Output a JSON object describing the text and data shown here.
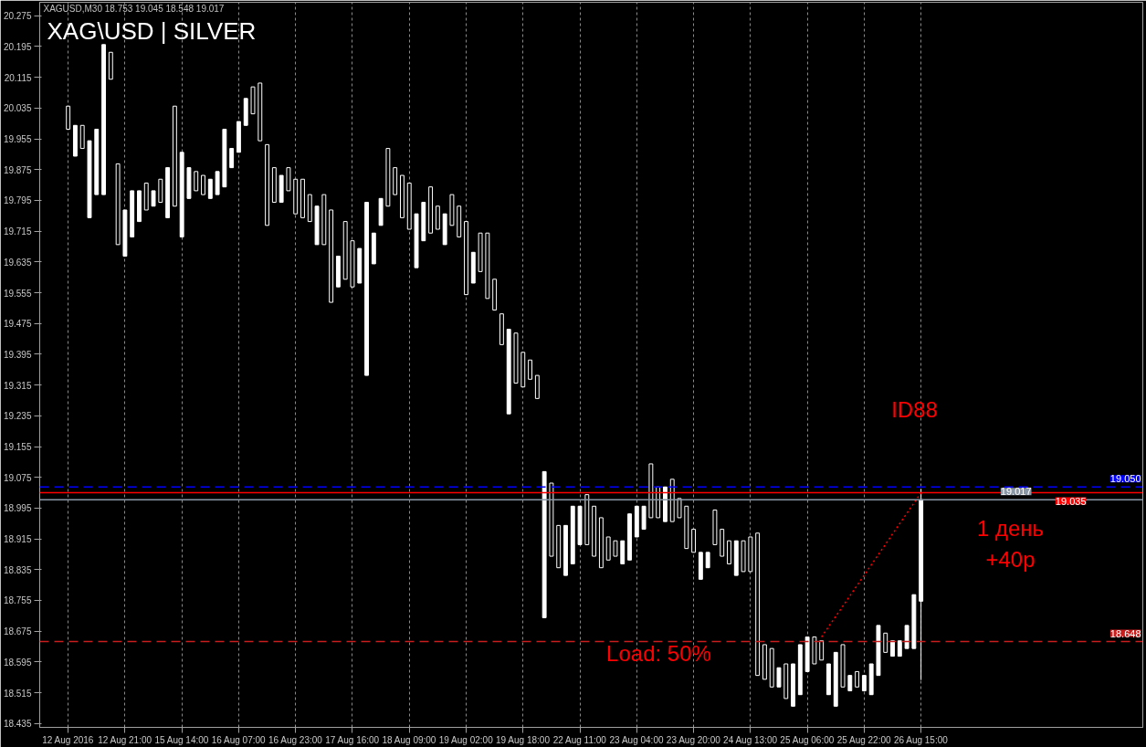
{
  "chart_data": {
    "type": "candlestick",
    "title": "XAG\\USD | SILVER",
    "subtitle": "XAGUSD,M30 18.753 19.045 18.548 19.017",
    "annotations": [
      "ID88",
      "1 день\n+40р",
      "Load: 50%"
    ],
    "categories": [
      "12 Aug 2016",
      null,
      null,
      null,
      null,
      null,
      null,
      null,
      "12 Aug 21:00",
      null,
      null,
      null,
      null,
      null,
      null,
      null,
      "15 Aug 14:00",
      null,
      null,
      null,
      null,
      null,
      null,
      null,
      "16 Aug 07:00",
      null,
      null,
      null,
      null,
      null,
      null,
      null,
      "16 Aug 23:00",
      null,
      null,
      null,
      null,
      null,
      null,
      null,
      "17 Aug 16:00",
      null,
      null,
      null,
      null,
      null,
      null,
      null,
      "18 Aug 09:00",
      null,
      null,
      null,
      null,
      null,
      null,
      null,
      "19 Aug 02:00",
      null,
      null,
      null,
      null,
      null,
      null,
      null,
      "19 Aug 18:00",
      null,
      null,
      null,
      null,
      null,
      null,
      null,
      "22 Aug 11:00",
      null,
      null,
      null,
      null,
      null,
      null,
      null,
      "23 Aug 04:00",
      null,
      null,
      null,
      null,
      null,
      null,
      null,
      "23 Aug 20:00",
      null,
      null,
      null,
      null,
      null,
      null,
      null,
      "24 Aug 13:00",
      null,
      null,
      null,
      null,
      null,
      null,
      null,
      "25 Aug 06:00",
      null,
      null,
      null,
      null,
      null,
      null,
      null,
      "25 Aug 22:00",
      null,
      null,
      null,
      null,
      null,
      null,
      null,
      "26 Aug 15:00"
    ],
    "ohlc": [
      [
        20.04,
        20.04,
        19.98,
        19.98
      ],
      [
        19.91,
        19.99,
        19.91,
        19.99
      ],
      [
        19.99,
        19.99,
        19.93,
        19.93
      ],
      [
        19.75,
        19.95,
        19.75,
        19.95
      ],
      [
        19.81,
        19.98,
        19.81,
        19.98
      ],
      [
        19.81,
        20.2,
        19.81,
        20.2
      ],
      [
        20.18,
        20.18,
        20.11,
        20.11
      ],
      [
        19.89,
        19.89,
        19.68,
        19.68
      ],
      [
        19.65,
        19.77,
        19.65,
        19.77
      ],
      [
        19.7,
        19.82,
        19.7,
        19.82
      ],
      [
        19.74,
        19.82,
        19.74,
        19.82
      ],
      [
        19.84,
        19.84,
        19.77,
        19.77
      ],
      [
        19.78,
        19.82,
        19.78,
        19.82
      ],
      [
        19.85,
        19.85,
        19.79,
        19.79
      ],
      [
        19.75,
        19.88,
        19.75,
        19.88
      ],
      [
        20.04,
        20.04,
        19.78,
        19.78
      ],
      [
        19.7,
        19.92,
        19.7,
        19.92
      ],
      [
        19.8,
        19.88,
        19.8,
        19.88
      ],
      [
        19.87,
        19.87,
        19.82,
        19.82
      ],
      [
        19.86,
        19.86,
        19.81,
        19.81
      ],
      [
        19.8,
        19.85,
        19.8,
        19.85
      ],
      [
        19.81,
        19.87,
        19.81,
        19.87
      ],
      [
        19.83,
        19.98,
        19.83,
        19.98
      ],
      [
        19.88,
        19.93,
        19.88,
        19.93
      ],
      [
        19.92,
        20.0,
        19.92,
        20.0
      ],
      [
        19.99,
        20.06,
        19.99,
        20.06
      ],
      [
        20.09,
        20.09,
        20.02,
        20.02
      ],
      [
        20.1,
        20.1,
        19.95,
        19.95
      ],
      [
        19.94,
        19.94,
        19.73,
        19.73
      ],
      [
        19.88,
        19.88,
        19.79,
        19.79
      ],
      [
        19.79,
        19.86,
        19.79,
        19.86
      ],
      [
        19.88,
        19.88,
        19.82,
        19.82
      ],
      [
        19.85,
        19.85,
        19.76,
        19.76
      ],
      [
        19.85,
        19.85,
        19.75,
        19.75
      ],
      [
        19.81,
        19.81,
        19.74,
        19.74
      ],
      [
        19.68,
        19.78,
        19.68,
        19.78
      ],
      [
        19.81,
        19.81,
        19.68,
        19.68
      ],
      [
        19.77,
        19.77,
        19.53,
        19.53
      ],
      [
        19.57,
        19.65,
        19.57,
        19.65
      ],
      [
        19.74,
        19.74,
        19.59,
        19.59
      ],
      [
        19.69,
        19.69,
        19.57,
        19.57
      ],
      [
        19.58,
        19.67,
        19.58,
        19.67
      ],
      [
        19.34,
        19.79,
        19.34,
        19.79
      ],
      [
        19.63,
        19.71,
        19.63,
        19.71
      ],
      [
        19.73,
        19.8,
        19.73,
        19.8
      ],
      [
        19.93,
        19.93,
        19.78,
        19.78
      ],
      [
        19.88,
        19.88,
        19.81,
        19.81
      ],
      [
        19.86,
        19.86,
        19.75,
        19.75
      ],
      [
        19.84,
        19.84,
        19.72,
        19.72
      ],
      [
        19.62,
        19.76,
        19.62,
        19.76
      ],
      [
        19.69,
        19.79,
        19.69,
        19.79
      ],
      [
        19.83,
        19.83,
        19.71,
        19.71
      ],
      [
        19.78,
        19.78,
        19.72,
        19.72
      ],
      [
        19.68,
        19.76,
        19.68,
        19.76
      ],
      [
        19.81,
        19.81,
        19.73,
        19.73
      ],
      [
        19.78,
        19.78,
        19.7,
        19.7
      ],
      [
        19.74,
        19.74,
        19.55,
        19.55
      ],
      [
        19.58,
        19.66,
        19.58,
        19.66
      ],
      [
        19.71,
        19.71,
        19.61,
        19.61
      ],
      [
        19.71,
        19.71,
        19.54,
        19.54
      ],
      [
        19.59,
        19.59,
        19.51,
        19.51
      ],
      [
        19.5,
        19.5,
        19.42,
        19.42
      ],
      [
        19.24,
        19.46,
        19.24,
        19.46
      ],
      [
        19.45,
        19.45,
        19.32,
        19.32
      ],
      [
        19.4,
        19.4,
        19.31,
        19.31
      ],
      [
        19.38,
        19.38,
        19.33,
        19.33
      ],
      [
        19.34,
        19.34,
        19.28,
        19.28
      ],
      [
        18.71,
        19.09,
        18.71,
        19.09
      ],
      [
        19.06,
        19.06,
        18.87,
        18.87
      ],
      [
        18.95,
        18.95,
        18.84,
        18.84
      ],
      [
        18.82,
        18.95,
        18.82,
        18.95
      ],
      [
        18.85,
        19.0,
        18.85,
        19.0
      ],
      [
        18.9,
        19.0,
        18.9,
        19.0
      ],
      [
        19.03,
        19.03,
        18.9,
        18.9
      ],
      [
        19.0,
        19.0,
        18.87,
        18.87
      ],
      [
        18.97,
        18.97,
        18.84,
        18.84
      ],
      [
        18.92,
        18.92,
        18.86,
        18.86
      ],
      [
        18.91,
        18.91,
        18.87,
        18.87
      ],
      [
        18.85,
        18.91,
        18.85,
        18.91
      ],
      [
        18.86,
        18.98,
        18.86,
        18.98
      ],
      [
        18.92,
        19.0,
        18.92,
        19.0
      ],
      [
        18.94,
        19.0,
        18.94,
        19.0
      ],
      [
        19.11,
        19.11,
        18.97,
        18.97
      ],
      [
        19.05,
        19.05,
        18.97,
        18.97
      ],
      [
        18.96,
        19.05,
        18.96,
        19.05
      ],
      [
        19.07,
        19.07,
        18.96,
        18.96
      ],
      [
        19.02,
        19.02,
        18.97,
        18.97
      ],
      [
        19.0,
        19.0,
        18.89,
        18.89
      ],
      [
        18.94,
        18.94,
        18.88,
        18.88
      ],
      [
        18.81,
        18.88,
        18.81,
        18.88
      ],
      [
        18.84,
        18.88,
        18.84,
        18.88
      ],
      [
        18.99,
        18.99,
        18.9,
        18.9
      ],
      [
        18.94,
        18.94,
        18.87,
        18.87
      ],
      [
        18.91,
        18.91,
        18.85,
        18.85
      ],
      [
        18.82,
        18.91,
        18.82,
        18.91
      ],
      [
        18.91,
        18.91,
        18.83,
        18.83
      ],
      [
        18.92,
        18.92,
        18.83,
        18.83
      ],
      [
        18.93,
        18.93,
        18.56,
        18.56
      ],
      [
        18.64,
        18.64,
        18.55,
        18.55
      ],
      [
        18.63,
        18.63,
        18.53,
        18.53
      ],
      [
        18.53,
        18.58,
        18.53,
        18.58
      ],
      [
        18.59,
        18.59,
        18.5,
        18.5
      ],
      [
        18.48,
        18.59,
        18.48,
        18.59
      ],
      [
        18.51,
        18.64,
        18.51,
        18.64
      ],
      [
        18.57,
        18.66,
        18.57,
        18.66
      ],
      [
        18.66,
        18.66,
        18.59,
        18.59
      ],
      [
        18.65,
        18.65,
        18.6,
        18.6
      ],
      [
        18.51,
        18.59,
        18.51,
        18.59
      ],
      [
        18.48,
        18.62,
        18.48,
        18.62
      ],
      [
        18.64,
        18.64,
        18.53,
        18.53
      ],
      [
        18.52,
        18.56,
        18.52,
        18.56
      ],
      [
        18.57,
        18.57,
        18.53,
        18.53
      ],
      [
        18.52,
        18.56,
        18.52,
        18.56
      ],
      [
        18.51,
        18.59,
        18.51,
        18.59
      ],
      [
        18.56,
        18.69,
        18.56,
        18.69
      ],
      [
        18.67,
        18.67,
        18.62,
        18.62
      ],
      [
        18.61,
        18.65,
        18.61,
        18.65
      ],
      [
        18.61,
        18.65,
        18.61,
        18.65
      ],
      [
        18.63,
        18.69,
        18.63,
        18.69
      ],
      [
        18.63,
        18.77,
        18.63,
        18.77
      ],
      [
        18.753,
        19.045,
        18.548,
        19.017
      ]
    ],
    "color": "#ffffff",
    "series": [
      {
        "type": "line",
        "color": "#ff0000",
        "line_style": "dotted",
        "values": [
          null,
          null,
          null,
          null,
          null,
          null,
          null,
          null,
          null,
          null,
          null,
          null,
          null,
          null,
          null,
          null,
          null,
          null,
          null,
          null,
          null,
          null,
          null,
          null,
          null,
          null,
          null,
          null,
          null,
          null,
          null,
          null,
          null,
          null,
          null,
          null,
          null,
          null,
          null,
          null,
          null,
          null,
          null,
          null,
          null,
          null,
          null,
          null,
          null,
          null,
          null,
          null,
          null,
          null,
          null,
          null,
          null,
          null,
          null,
          null,
          null,
          null,
          null,
          null,
          null,
          null,
          null,
          null,
          null,
          null,
          null,
          null,
          null,
          null,
          null,
          null,
          null,
          null,
          null,
          null,
          null,
          null,
          null,
          null,
          null,
          null,
          null,
          null,
          null,
          null,
          null,
          null,
          null,
          null,
          null,
          null,
          null,
          null,
          null,
          null,
          null,
          null,
          null,
          null,
          null,
          null,
          18.66,
          null,
          null,
          null,
          null,
          null,
          null,
          null,
          null,
          null,
          null,
          null,
          null,
          null,
          19.035
        ]
      }
    ],
    "ylim": [
      18.425,
      20.31
    ],
    "yticks": [
      18.435,
      18.515,
      18.595,
      18.675,
      18.755,
      18.835,
      18.915,
      18.995,
      19.075,
      19.155,
      19.235,
      19.315,
      19.395,
      19.475,
      19.555,
      19.635,
      19.715,
      19.795,
      19.875,
      19.955,
      20.035,
      20.115,
      20.195,
      20.275
    ],
    "grid": "x",
    "ref_lines": [
      {
        "axis": "y",
        "value": 19.05,
        "label": "19.050",
        "color": "#0000ff",
        "line_style": "dashed"
      },
      {
        "axis": "y",
        "value": 19.035,
        "label": "19.035",
        "color": "#ff0000",
        "line_style": "solid"
      },
      {
        "axis": "y",
        "value": 19.017,
        "label": "19.017",
        "color": "#8a97a6",
        "line_style": "solid"
      },
      {
        "axis": "y",
        "value": 18.648,
        "label": "18.648",
        "color": "#c81e1e",
        "line_style": "dashed"
      }
    ]
  }
}
